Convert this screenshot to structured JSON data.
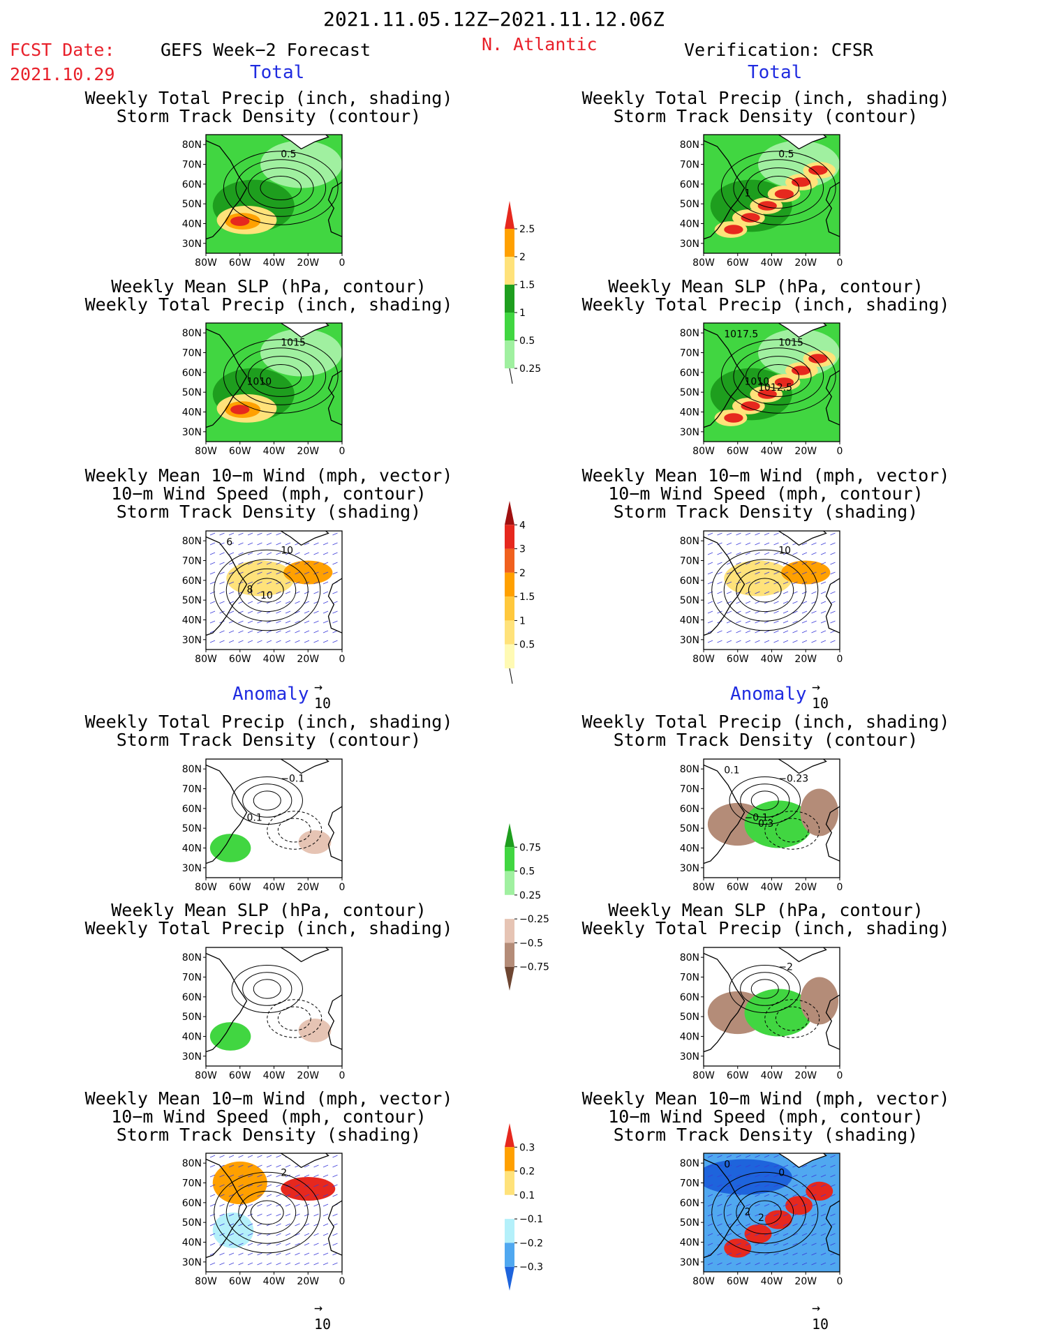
{
  "header": {
    "period": "2021.11.05.12Z−2021.11.12.06Z",
    "fcst_label": "FCST Date:",
    "fcst_date": "2021.10.29",
    "model": "GEFS Week−2 Forecast",
    "region": "N. Atlantic",
    "verification": "Verification: CFSR"
  },
  "sections": {
    "total": "Total",
    "anomaly": "Anomaly"
  },
  "axes": {
    "lat_ticks": [
      "80N",
      "70N",
      "60N",
      "50N",
      "40N",
      "30N"
    ],
    "lon_ticks": [
      "80W",
      "60W",
      "40W",
      "20W",
      "0"
    ]
  },
  "panel_titles": {
    "precip_track": [
      "Weekly Total Precip (inch, shading)",
      "Storm Track Density (contour)"
    ],
    "slp_precip": [
      "Weekly Mean SLP (hPa, contour)",
      "Weekly Total Precip (inch, shading)"
    ],
    "wind_track": [
      "Weekly Mean 10−m Wind (mph, vector)",
      "10−m Wind Speed (mph, contour)",
      "Storm Track Density (shading)"
    ]
  },
  "vector_ref": "10",
  "colorbars": {
    "precip": {
      "labels": [
        "2.5",
        "2",
        "1.5",
        "1",
        "0.5",
        "0.25"
      ],
      "colors": [
        "#e6281e",
        "#ffa000",
        "#ffe27a",
        "#1e9e1e",
        "#41d641",
        "#a0f0a0"
      ]
    },
    "track": {
      "labels": [
        "4",
        "3",
        "2",
        "1.5",
        "1",
        "0.5"
      ],
      "colors": [
        "#a01010",
        "#e6281e",
        "#f0601e",
        "#ffa000",
        "#ffc83c",
        "#ffe27a",
        "#fffab4"
      ]
    },
    "precip_anom": {
      "labels": [
        "0.75",
        "0.5",
        "0.25",
        "−0.25",
        "−0.5",
        "−0.75"
      ],
      "colors": [
        "#1e9e1e",
        "#41d641",
        "#a0f0a0",
        "#ffffff",
        "#e6c4b4",
        "#b48c78",
        "#6e4632"
      ]
    },
    "track_anom": {
      "labels": [
        "0.3",
        "0.2",
        "0.1",
        "−0.1",
        "−0.2",
        "−0.3"
      ],
      "colors": [
        "#e6281e",
        "#ffa000",
        "#ffe27a",
        "#ffffff",
        "#b4f0fa",
        "#50a8f0",
        "#1e64dc"
      ]
    }
  },
  "contour_labels": {
    "p1": [
      "0.5"
    ],
    "p2": [
      "0.5",
      "1"
    ],
    "p3": [
      "1015",
      "1010"
    ],
    "p4": [
      "1015",
      "1010",
      "1017.5",
      "1012.5"
    ],
    "p5": [
      "10",
      "8",
      "6",
      "10"
    ],
    "p6": [
      "10"
    ],
    "p7": [
      "−0.1",
      "0.1"
    ],
    "p8": [
      "−0.23",
      "−0.1",
      "0.1",
      "0.3"
    ],
    "p10": [
      "−2"
    ],
    "p11": [
      "2"
    ],
    "p12": [
      "0",
      "2",
      "0",
      "2"
    ]
  },
  "colors": {
    "land_green": "#41d641",
    "title_red": "#e8202a",
    "title_blue": "#1f2be0"
  }
}
